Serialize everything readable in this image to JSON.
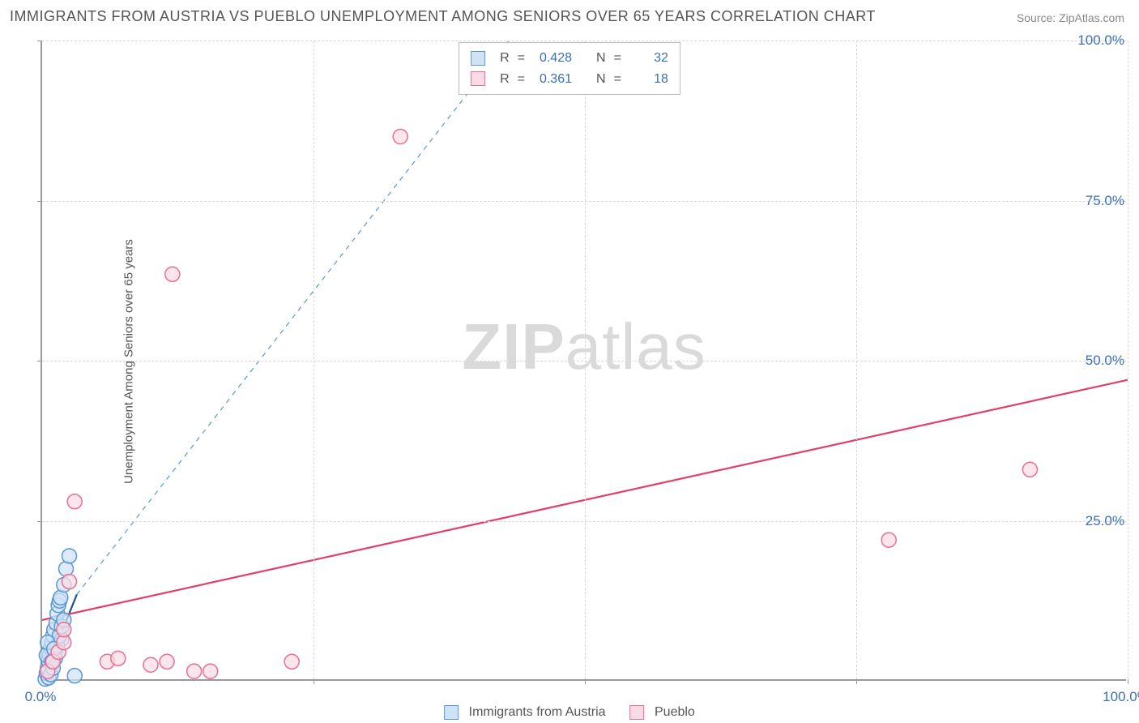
{
  "title": "IMMIGRANTS FROM AUSTRIA VS PUEBLO UNEMPLOYMENT AMONG SENIORS OVER 65 YEARS CORRELATION CHART",
  "source": "Source: ZipAtlas.com",
  "yaxis_label": "Unemployment Among Seniors over 65 years",
  "watermark_a": "ZIP",
  "watermark_b": "atlas",
  "chart": {
    "type": "scatter",
    "xlim": [
      0,
      100
    ],
    "ylim": [
      0,
      100
    ],
    "xtick_step": 25,
    "ytick_step": 25,
    "x_tick_labels": [
      "0.0%",
      "100.0%"
    ],
    "y_tick_labels": [
      "25.0%",
      "50.0%",
      "75.0%",
      "100.0%"
    ],
    "axis_label_color": "#3b6fb6",
    "grid_color": "#d8d8d8",
    "background_color": "#ffffff",
    "marker_radius": 9,
    "marker_stroke_width": 1.5,
    "series": [
      {
        "name": "Immigrants from Austria",
        "color_fill": "#cfe3f7",
        "color_stroke": "#5a97d4",
        "R": "0.428",
        "N": "32",
        "trend": {
          "x1": 0,
          "y1": 0,
          "x2": 3.2,
          "y2": 13.5,
          "dashed_extend_to_x": 43,
          "dashed_extend_to_y": 100,
          "color": "#1c4f9c",
          "width": 2.2
        },
        "points": [
          [
            0.3,
            0.3
          ],
          [
            0.4,
            1.2
          ],
          [
            0.5,
            2.0
          ],
          [
            0.6,
            3.1
          ],
          [
            0.7,
            4.0
          ],
          [
            0.8,
            5.2
          ],
          [
            0.9,
            6.0
          ],
          [
            1.0,
            7.1
          ],
          [
            1.1,
            8.0
          ],
          [
            1.2,
            3.5
          ],
          [
            1.3,
            9.0
          ],
          [
            1.4,
            10.5
          ],
          [
            1.5,
            11.8
          ],
          [
            1.6,
            12.5
          ],
          [
            1.7,
            13.0
          ],
          [
            1.8,
            6.5
          ],
          [
            2.0,
            15.0
          ],
          [
            2.2,
            17.5
          ],
          [
            2.5,
            19.5
          ],
          [
            0.6,
            0.5
          ],
          [
            0.8,
            1.0
          ],
          [
            1.0,
            2.0
          ],
          [
            1.2,
            4.5
          ],
          [
            1.4,
            5.5
          ],
          [
            1.6,
            7.0
          ],
          [
            1.8,
            8.5
          ],
          [
            2.0,
            9.5
          ],
          [
            0.4,
            4.0
          ],
          [
            0.5,
            6.0
          ],
          [
            0.9,
            3.0
          ],
          [
            1.1,
            5.0
          ],
          [
            3.0,
            0.8
          ]
        ]
      },
      {
        "name": "Pueblo",
        "color_fill": "#fbdbe3",
        "color_stroke": "#e76f93",
        "R": "0.361",
        "N": "18",
        "trend": {
          "x1": 0,
          "y1": 9.5,
          "x2": 100,
          "y2": 47,
          "color": "#e13f6a",
          "width": 2.2
        },
        "points": [
          [
            0.5,
            1.5
          ],
          [
            1.0,
            3.0
          ],
          [
            1.5,
            4.5
          ],
          [
            2.0,
            6.0
          ],
          [
            2.5,
            15.5
          ],
          [
            3.0,
            28.0
          ],
          [
            6.0,
            3.0
          ],
          [
            7.0,
            3.5
          ],
          [
            10.0,
            2.5
          ],
          [
            11.5,
            3.0
          ],
          [
            14.0,
            1.5
          ],
          [
            15.5,
            1.5
          ],
          [
            23.0,
            3.0
          ],
          [
            12.0,
            63.5
          ],
          [
            33.0,
            85.0
          ],
          [
            78.0,
            22.0
          ],
          [
            91.0,
            33.0
          ],
          [
            2.0,
            8.0
          ]
        ]
      }
    ]
  },
  "legend": {
    "series1_label": "Immigrants from Austria",
    "series2_label": "Pueblo"
  },
  "stats_letters": {
    "R": "R",
    "N": "N",
    "eq": "="
  }
}
